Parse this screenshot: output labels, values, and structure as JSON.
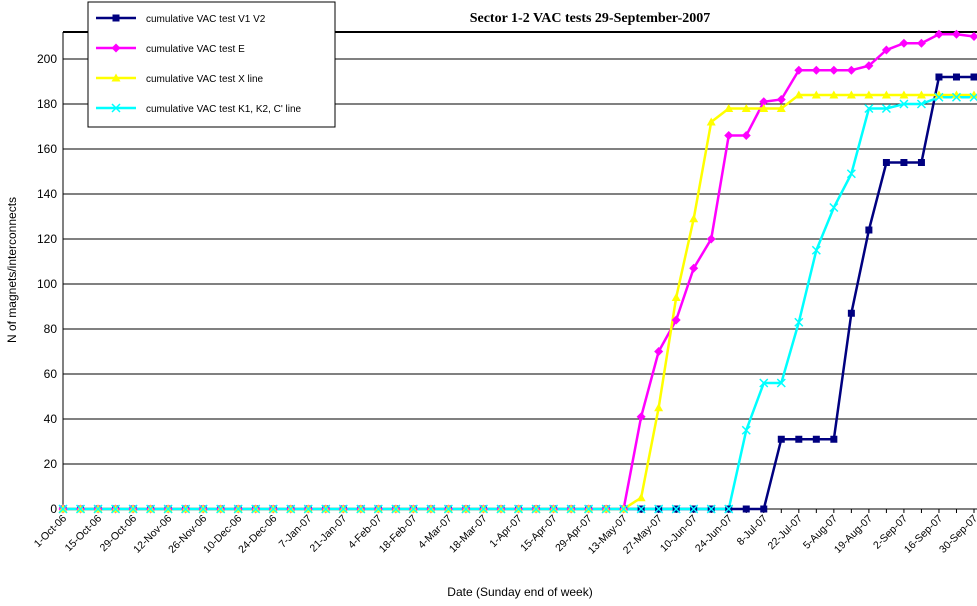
{
  "chart_data": {
    "type": "line",
    "title": "Sector 1-2 VAC tests 29-September-2007",
    "x_label": "Date (Sunday end of week)",
    "y_label": "N of magnets/interconnects",
    "categories": [
      "1-Oct-06",
      null,
      "15-Oct-06",
      null,
      "29-Oct-06",
      null,
      "12-Nov-06",
      null,
      "26-Nov-06",
      null,
      "10-Dec-06",
      null,
      "24-Dec-06",
      null,
      "7-Jan-07",
      null,
      "21-Jan-07",
      null,
      "4-Feb-07",
      null,
      "18-Feb-07",
      null,
      "4-Mar-07",
      null,
      "18-Mar-07",
      null,
      "1-Apr-07",
      null,
      "15-Apr-07",
      null,
      "29-Apr-07",
      null,
      "13-May-07",
      null,
      "27-May-07",
      null,
      "10-Jun-07",
      null,
      "24-Jun-07",
      null,
      "8-Jul-07",
      null,
      "22-Jul-07",
      null,
      "5-Aug-07",
      null,
      "19-Aug-07",
      null,
      "2-Sep-07",
      null,
      "16-Sep-07",
      null,
      "30-Sep-07"
    ],
    "series": [
      {
        "name": "cumulative VAC test V1 V2",
        "color": "#000080",
        "marker": "square",
        "values": [
          0,
          0,
          0,
          0,
          0,
          0,
          0,
          0,
          0,
          0,
          0,
          0,
          0,
          0,
          0,
          0,
          0,
          0,
          0,
          0,
          0,
          0,
          0,
          0,
          0,
          0,
          0,
          0,
          0,
          0,
          0,
          0,
          0,
          0,
          0,
          0,
          0,
          0,
          0,
          0,
          0,
          31,
          31,
          31,
          31,
          87,
          124,
          154,
          154,
          154,
          192,
          192,
          192
        ]
      },
      {
        "name": "cumulative VAC test E",
        "color": "#ff00ff",
        "marker": "diamond",
        "values": [
          0,
          0,
          0,
          0,
          0,
          0,
          0,
          0,
          0,
          0,
          0,
          0,
          0,
          0,
          0,
          0,
          0,
          0,
          0,
          0,
          0,
          0,
          0,
          0,
          0,
          0,
          0,
          0,
          0,
          0,
          0,
          0,
          0,
          41,
          70,
          84,
          107,
          120,
          166,
          166,
          181,
          182,
          195,
          195,
          195,
          195,
          197,
          204,
          207,
          207,
          211,
          211,
          210
        ]
      },
      {
        "name": "cumulative VAC test X line",
        "color": "#ffff00",
        "marker": "triangle",
        "values": [
          0,
          0,
          0,
          0,
          0,
          0,
          0,
          0,
          0,
          0,
          0,
          0,
          0,
          0,
          0,
          0,
          0,
          0,
          0,
          0,
          0,
          0,
          0,
          0,
          0,
          0,
          0,
          0,
          0,
          0,
          0,
          0,
          0,
          5,
          45,
          94,
          129,
          172,
          178,
          178,
          178,
          178,
          184,
          184,
          184,
          184,
          184,
          184,
          184,
          184,
          184,
          184,
          184
        ]
      },
      {
        "name": "cumulative VAC test K1, K2, C' line",
        "color": "#00ffff",
        "marker": "x",
        "values": [
          0,
          0,
          0,
          0,
          0,
          0,
          0,
          0,
          0,
          0,
          0,
          0,
          0,
          0,
          0,
          0,
          0,
          0,
          0,
          0,
          0,
          0,
          0,
          0,
          0,
          0,
          0,
          0,
          0,
          0,
          0,
          0,
          0,
          0,
          0,
          0,
          0,
          0,
          0,
          35,
          56,
          56,
          83,
          115,
          134,
          149,
          178,
          178,
          180,
          180,
          183,
          183,
          183
        ]
      }
    ],
    "ylim": [
      0,
      212
    ],
    "yticks": [
      0,
      20,
      40,
      60,
      80,
      100,
      120,
      140,
      160,
      180,
      200
    ],
    "grid": true,
    "legend": "top-left"
  }
}
